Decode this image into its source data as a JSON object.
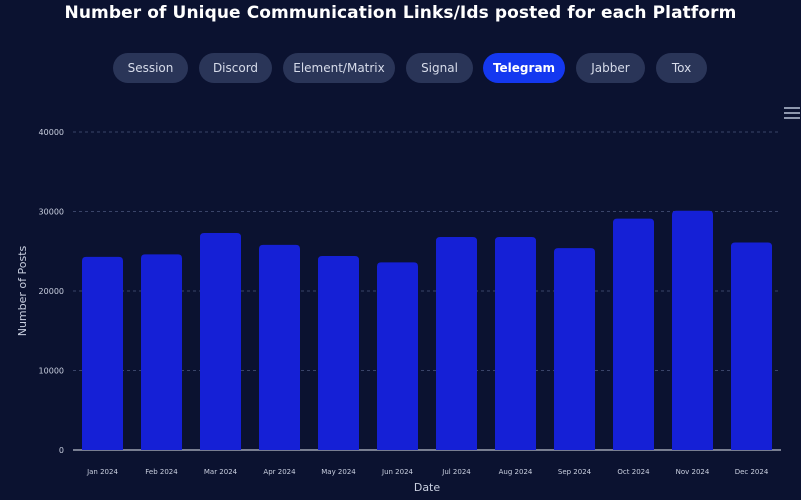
{
  "header": {
    "title": "Number of Unique Communication Links/Ids posted for each Platform"
  },
  "tabs": [
    {
      "label": "Session",
      "active": false
    },
    {
      "label": "Discord",
      "active": false
    },
    {
      "label": "Element/Matrix",
      "active": false
    },
    {
      "label": "Signal",
      "active": false
    },
    {
      "label": "Telegram",
      "active": true
    },
    {
      "label": "Jabber",
      "active": false
    },
    {
      "label": "Tox",
      "active": false
    }
  ],
  "toolbar": {
    "menu_icon": "hamburger-menu-icon"
  },
  "colors": {
    "background": "#0b1230",
    "bar": "#1520d6",
    "active_tab": "#1438f0",
    "inactive_tab": "#2a3558",
    "grid": "#3a4468",
    "text": "#ffffff",
    "axis_text": "#c9cfdf"
  },
  "chart_data": {
    "type": "bar",
    "title": "Number of Unique Communication Links/Ids posted for each Platform",
    "series_name": "Telegram",
    "categories": [
      "Jan 2024",
      "Feb 2024",
      "Mar 2024",
      "Apr 2024",
      "May 2024",
      "Jun 2024",
      "Jul 2024",
      "Aug 2024",
      "Sep 2024",
      "Oct 2024",
      "Nov 2024",
      "Dec 2024"
    ],
    "values": [
      24300,
      24600,
      27300,
      25800,
      24400,
      23600,
      26800,
      26800,
      25400,
      29100,
      30100,
      26100
    ],
    "xlabel": "Date",
    "ylabel": "Number of Posts",
    "yticks": [
      "0",
      "10000",
      "20000",
      "30000",
      "40000"
    ],
    "ylim": [
      0,
      40000
    ],
    "grid": true,
    "legend": "none"
  }
}
